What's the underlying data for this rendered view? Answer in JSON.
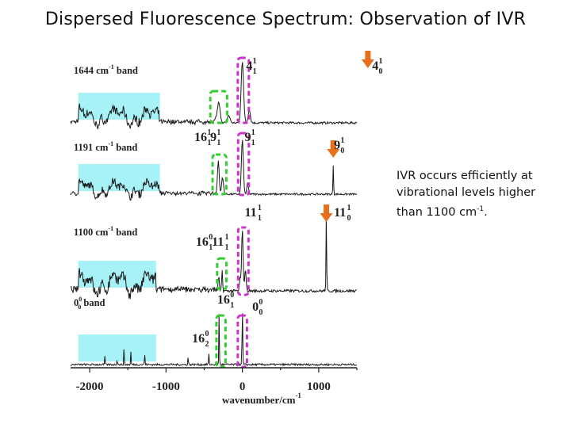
{
  "slide": {
    "title": "Dispersed Fluorescence Spectrum: Observation of IVR",
    "note_text": "IVR occurs efficiently at vibrational levels higher than 1100 cm",
    "note_sup": "-1",
    "note_end": "."
  },
  "colors": {
    "trace": "#1a1a1a",
    "cyan_highlight": "#a6f2f7",
    "green_box": "#33cc33",
    "magenta_box": "#cc33cc",
    "arrow": "#e8701c"
  },
  "chart_data": {
    "type": "line",
    "title": "",
    "xlabel": "wavenumber/cm",
    "xlabel_sup": "-1",
    "ylabel": "",
    "xlim": [
      -2250,
      1500
    ],
    "xticks": [
      "-2000",
      "-1000",
      "0",
      "1000"
    ],
    "xtick_values": [
      -2000,
      -1000,
      0,
      1000
    ],
    "series": [
      {
        "name": "1644 cm-1 band",
        "label_main": "1644 cm",
        "label_sup": "-1",
        "label_end": " band",
        "peaks": [
          {
            "x": -310,
            "h": 0.3,
            "w": 28
          },
          {
            "x": -180,
            "h": 0.12,
            "w": 25
          },
          {
            "x": 0,
            "h": 1.0,
            "w": 22
          },
          {
            "x": 90,
            "h": 0.22,
            "w": 20
          },
          {
            "x": 1644,
            "h": 1.0,
            "w": 6
          }
        ],
        "cyan_x": [
          -2150,
          -1080
        ],
        "annotations": [
          {
            "text": "4",
            "sup": "1",
            "sub": "1",
            "x": 50
          },
          {
            "text": "4",
            "sup": "1",
            "sub": "0",
            "x": 1700
          }
        ]
      },
      {
        "name": "1191 cm-1 band",
        "label_main": "1191 cm",
        "label_sup": "-1",
        "label_end": " band",
        "peaks": [
          {
            "x": -315,
            "h": 0.6,
            "w": 16
          },
          {
            "x": -260,
            "h": 0.3,
            "w": 18
          },
          {
            "x": 0,
            "h": 1.0,
            "w": 18
          },
          {
            "x": 70,
            "h": 0.2,
            "w": 16
          },
          {
            "x": 1191,
            "h": 0.55,
            "w": 6
          }
        ],
        "cyan_x": [
          -2150,
          -1080
        ],
        "annotations": [
          {
            "text": "16",
            "sup": "1",
            "sub": "1",
            "x": -630
          },
          {
            "text": "9",
            "sup": "1",
            "sub": "1",
            "x": -420
          },
          {
            "text": "9",
            "sup": "1",
            "sub": "1",
            "x": 30
          },
          {
            "text": "9",
            "sup": "1",
            "sub": "0",
            "x": 1200
          }
        ]
      },
      {
        "name": "1100 cm-1 band",
        "label_main": "1100 cm",
        "label_sup": "-1",
        "label_end": " band",
        "peaks": [
          {
            "x": -310,
            "h": 0.2,
            "w": 8
          },
          {
            "x": -265,
            "h": 0.28,
            "w": 8
          },
          {
            "x": -30,
            "h": 0.18,
            "w": 10
          },
          {
            "x": 0,
            "h": 0.8,
            "w": 14
          },
          {
            "x": 40,
            "h": 0.3,
            "w": 12
          },
          {
            "x": 1100,
            "h": 1.0,
            "w": 6
          }
        ],
        "cyan_x": [
          -2150,
          -1130
        ],
        "annotations": [
          {
            "text": "11",
            "sup": "1",
            "sub": "1",
            "x": 30
          },
          {
            "text": "11",
            "sup": "1",
            "sub": "0",
            "x": 1200
          },
          {
            "text": "16",
            "sup": "0",
            "sub": "1",
            "x": -610
          },
          {
            "text": "11",
            "sup": "1",
            "sub": "1",
            "x": -400
          }
        ]
      },
      {
        "name": "0-0 band",
        "label_main": "0",
        "label_sup": "0",
        "label_sub": "0",
        "label_end": " band",
        "peaks": [
          {
            "x": -1800,
            "h": 0.14,
            "w": 5
          },
          {
            "x": -1640,
            "h": 0.12,
            "w": 5
          },
          {
            "x": -1550,
            "h": 0.3,
            "w": 5
          },
          {
            "x": -1460,
            "h": 0.22,
            "w": 5
          },
          {
            "x": -1280,
            "h": 0.2,
            "w": 5
          },
          {
            "x": -710,
            "h": 0.15,
            "w": 5
          },
          {
            "x": -440,
            "h": 0.2,
            "w": 5
          },
          {
            "x": -305,
            "h": 0.9,
            "w": 5
          },
          {
            "x": 0,
            "h": 1.0,
            "w": 6
          }
        ],
        "cyan_x": [
          -2150,
          -1130
        ],
        "annotations": [
          {
            "text": "16",
            "sup": "0",
            "sub": "1",
            "x": -330
          },
          {
            "text": "0",
            "sup": "0",
            "sub": "0",
            "x": 130
          },
          {
            "text": "16",
            "sup": "0",
            "sub": "2",
            "x": -660
          }
        ]
      }
    ]
  }
}
